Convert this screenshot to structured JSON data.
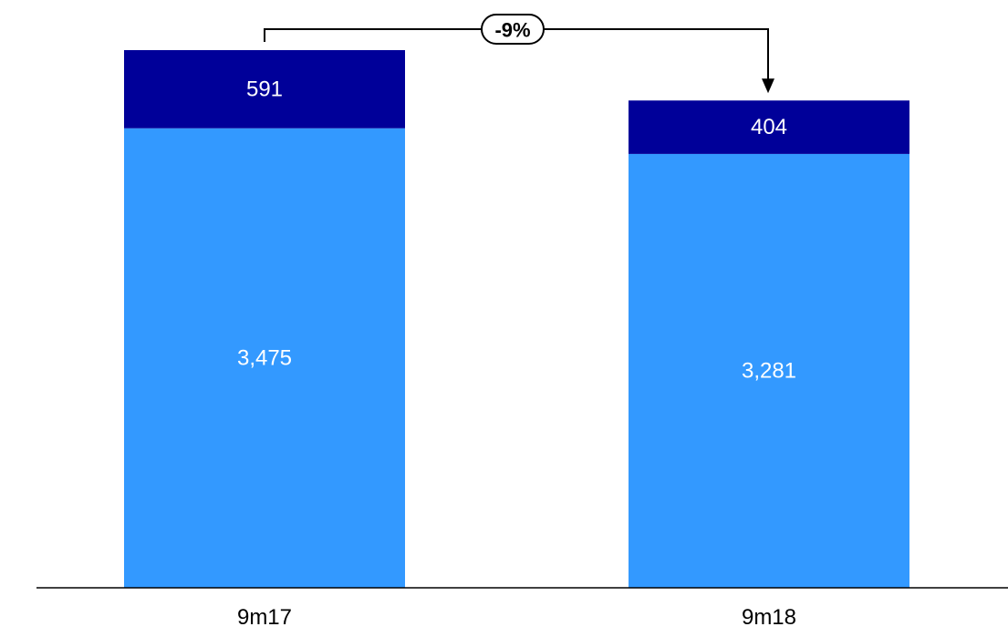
{
  "chart_data": {
    "type": "bar",
    "stacked": true,
    "categories": [
      "9m17",
      "9m18"
    ],
    "series": [
      {
        "values": [
          3475,
          3281
        ],
        "labels": [
          "3,475",
          "3,281"
        ],
        "color": "#3399ff"
      },
      {
        "values": [
          591,
          404
        ],
        "labels": [
          "591",
          "404"
        ],
        "color": "#000099"
      }
    ],
    "annotation": {
      "label": "-9%"
    },
    "title": "",
    "xlabel": "",
    "ylabel": "",
    "grid": false,
    "legend": "none"
  }
}
